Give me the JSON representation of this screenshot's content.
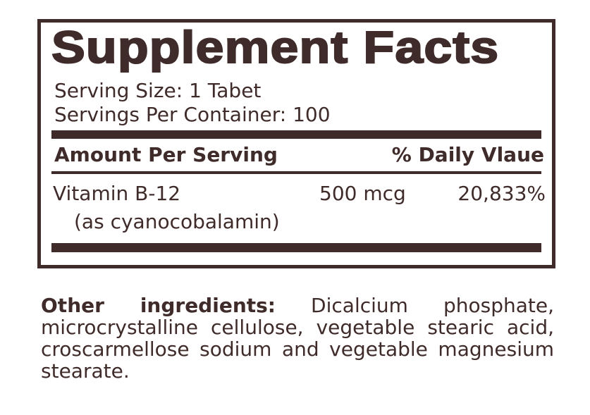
{
  "panel": {
    "title": "Supplement Facts",
    "serving_size": "Serving Size: 1 Tabet",
    "servings_per_container": "Servings Per Container: 100",
    "header_amount": "Amount Per Serving",
    "header_daily_value": "% Daily Vlaue",
    "nutrients": [
      {
        "name": "Vitamin B-12",
        "form": "(as cyanocobalamin)",
        "amount": "500 mcg",
        "daily_value": "20,833%"
      }
    ]
  },
  "other_ingredients": {
    "label": "Other ingredients:",
    "text": "Dicalcium phosphate, microcrystalline cellulose, vegetable stearic acid, croscarmellose sodium and vegetable magnesium stearate."
  },
  "colors": {
    "text": "#3f2b2a",
    "background": "#ffffff"
  }
}
